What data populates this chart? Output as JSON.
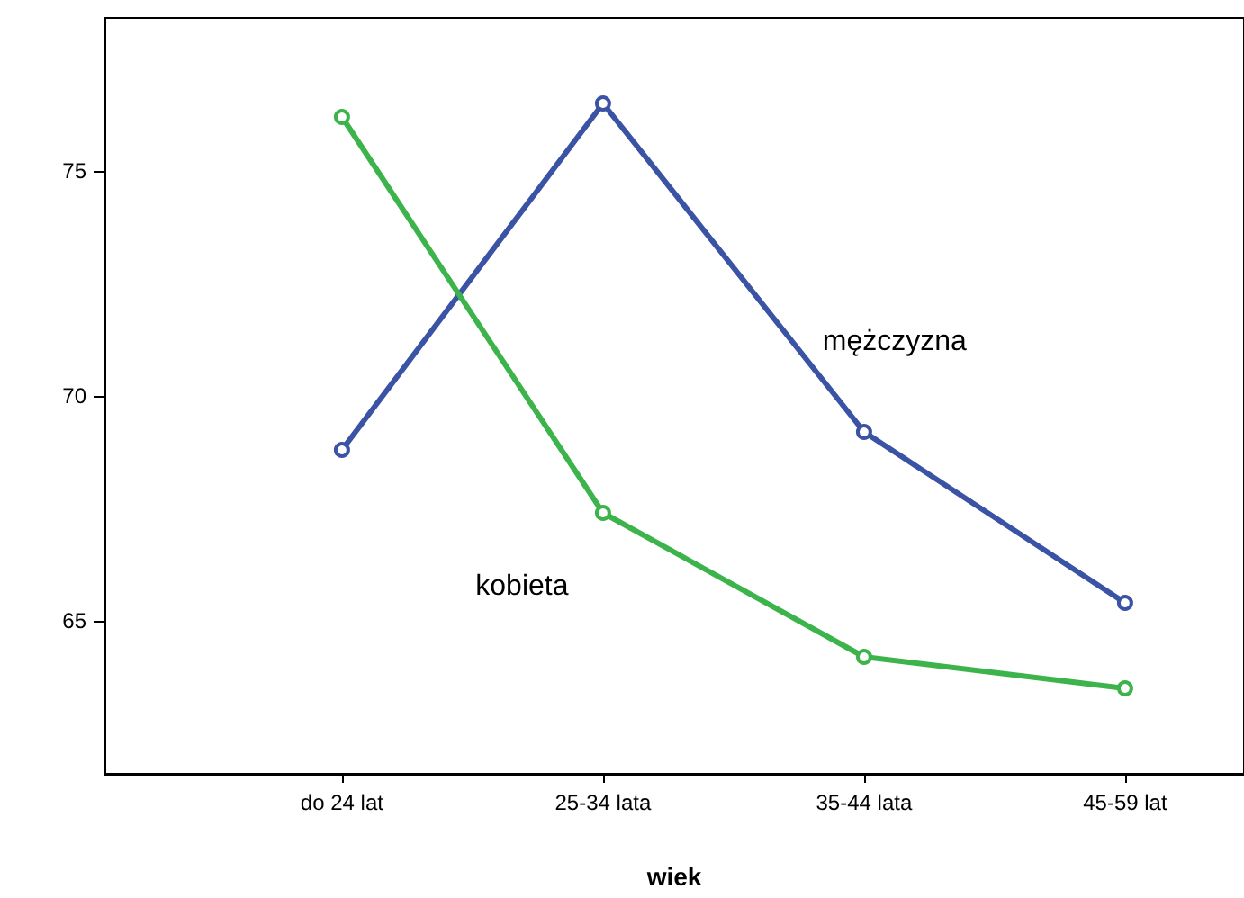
{
  "chart_data": {
    "type": "line",
    "xlabel": "wiek",
    "categories": [
      "do 24 lat",
      "25-34 lata",
      "35-44 lata",
      "45-59 lat"
    ],
    "series": [
      {
        "name": "mężczyzna",
        "color": "#3a53a4",
        "values": [
          68.8,
          76.5,
          69.2,
          65.4
        ]
      },
      {
        "name": "kobieta",
        "color": "#3cb44b",
        "values": [
          76.2,
          67.4,
          64.2,
          63.5
        ]
      }
    ],
    "ylim": [
      61.6,
      78.4
    ],
    "yticks": [
      65,
      70,
      75
    ],
    "grid": false,
    "legend": false,
    "marker": "circle",
    "line_style": "solid"
  }
}
